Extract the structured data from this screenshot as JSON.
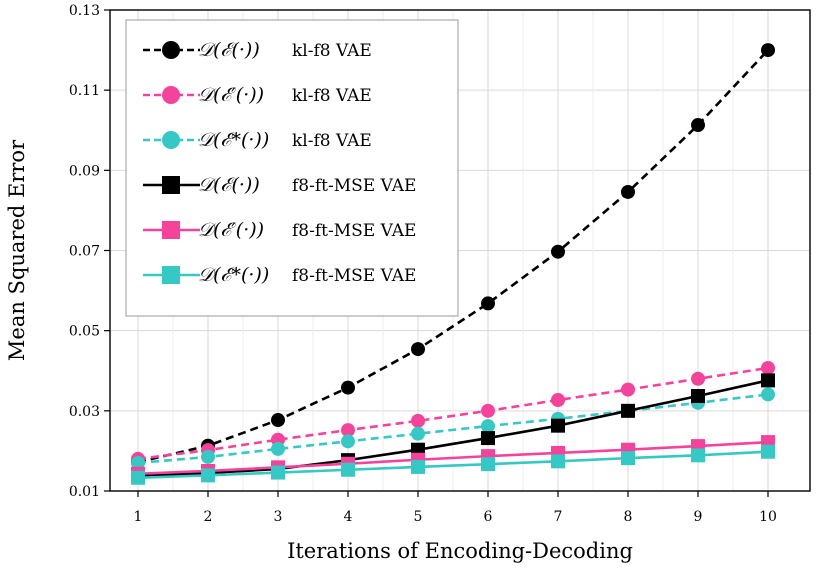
{
  "chart_data": {
    "type": "line",
    "title": "",
    "xlabel": "Iterations of Encoding-Decoding",
    "ylabel": "Mean Squared Error",
    "x": [
      1,
      2,
      3,
      4,
      5,
      6,
      7,
      8,
      9,
      10
    ],
    "xticks": [
      "1",
      "2",
      "3",
      "4",
      "5",
      "6",
      "7",
      "8",
      "9",
      "10"
    ],
    "xlim": [
      0.6,
      10.6
    ],
    "ylim": [
      0.01,
      0.13
    ],
    "yticks": [
      "0.01",
      "0.03",
      "0.05",
      "0.07",
      "0.09",
      "0.11",
      "0.13"
    ],
    "grid": true,
    "legend_position": "top-left",
    "series": [
      {
        "name": "𝒟(ℰ(·)) kl-f8 VAE",
        "math": "𝒟(ℰ(·))",
        "label": "kl-f8 VAE",
        "color": "#000000",
        "line": "dashed",
        "marker": "circle",
        "values": [
          0.0172,
          0.0213,
          0.0277,
          0.0358,
          0.0454,
          0.0568,
          0.0697,
          0.0846,
          0.1013,
          0.12
        ]
      },
      {
        "name": "𝒟(ℰ′(·)) kl-f8 VAE",
        "math": "𝒟(ℰ′(·))",
        "label": "kl-f8 VAE",
        "color": "#f5439c",
        "line": "dashed",
        "marker": "circle",
        "values": [
          0.018,
          0.0202,
          0.0228,
          0.0252,
          0.0275,
          0.03,
          0.0327,
          0.0353,
          0.038,
          0.0407
        ]
      },
      {
        "name": "𝒟(ℰ*(·)) kl-f8 VAE",
        "math": "𝒟(ℰ*(·))",
        "label": "kl-f8 VAE",
        "color": "#36c8c4",
        "line": "dashed",
        "marker": "circle",
        "values": [
          0.017,
          0.0185,
          0.0205,
          0.0224,
          0.0243,
          0.0262,
          0.028,
          0.03,
          0.032,
          0.0341
        ]
      },
      {
        "name": "𝒟(ℰ(·)) f8-ft-MSE VAE",
        "math": "𝒟(ℰ(·))",
        "label": "f8-ft-MSE VAE",
        "color": "#000000",
        "line": "solid",
        "marker": "square",
        "values": [
          0.0137,
          0.0145,
          0.0155,
          0.0177,
          0.0203,
          0.0232,
          0.0263,
          0.03,
          0.0337,
          0.0376
        ]
      },
      {
        "name": "𝒟(ℰ′(·)) f8-ft-MSE VAE",
        "math": "𝒟(ℰ′(·))",
        "label": "f8-ft-MSE VAE",
        "color": "#f5439c",
        "line": "solid",
        "marker": "square",
        "values": [
          0.0143,
          0.015,
          0.0159,
          0.0168,
          0.0178,
          0.0187,
          0.0195,
          0.0203,
          0.0212,
          0.0222
        ]
      },
      {
        "name": "𝒟(ℰ*(·)) f8-ft-MSE VAE",
        "math": "𝒟(ℰ*(·))",
        "label": "f8-ft-MSE VAE",
        "color": "#36c8c4",
        "line": "solid",
        "marker": "square",
        "values": [
          0.0133,
          0.0139,
          0.0146,
          0.0153,
          0.016,
          0.0167,
          0.0174,
          0.0182,
          0.0189,
          0.0198
        ]
      }
    ]
  }
}
